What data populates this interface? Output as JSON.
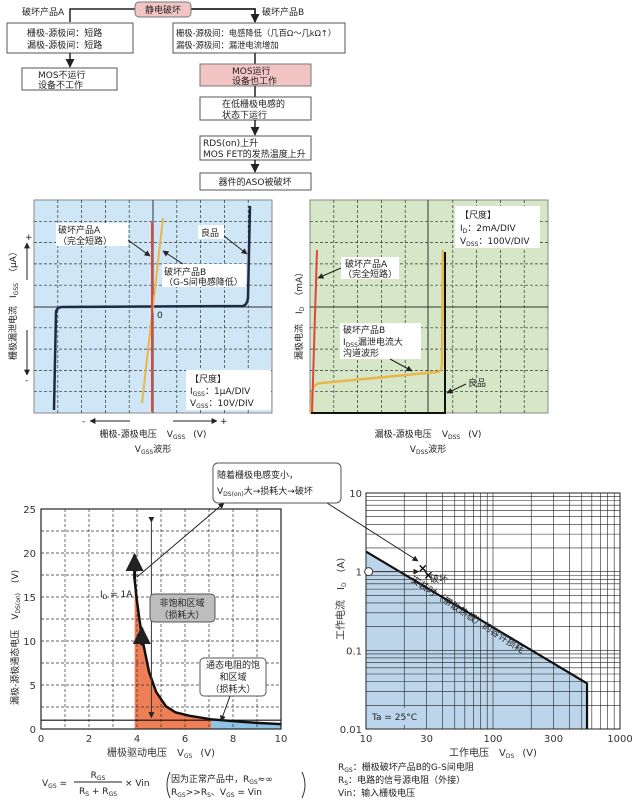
{
  "flow": {
    "root": "静电破坏",
    "branch_a": "破坏产品A",
    "branch_b": "破坏产品B",
    "a_box1": [
      "栅极-源极间：短路",
      "漏极-源极间：短路"
    ],
    "a_box2": [
      "MOS不运行",
      "设备不工作"
    ],
    "b_box1": [
      "栅极-源极间：电感降低（几百Ω～几kΩ↑）",
      "漏极-源极间：漏泄电流增加"
    ],
    "b_box2": [
      "MOS运行",
      "设备也工作"
    ],
    "b_box3": [
      "在低栅极电感的",
      "状态下运行"
    ],
    "b_box4": [
      "RDS(on)上升",
      "MOS FET的发热温度上升"
    ],
    "b_box5": "器件的ASO被破坏"
  },
  "vgss_scope": {
    "bg": "#cfe6f6",
    "label_a": [
      "破坏产品A",
      "（完全短路）"
    ],
    "label_good": "良品",
    "label_b": [
      "破坏产品B",
      "（G-S间电感降低）"
    ],
    "origin": "0",
    "scale_title": "【尺度】",
    "scale_i": {
      "main": "I",
      "sub": "GSS",
      "rest": "：1μA/DIV"
    },
    "scale_v": {
      "main": "V",
      "sub": "GSS",
      "rest": "：10V/DIV"
    },
    "y_label": "栅极漏泄电流",
    "y_sym": {
      "main": "I",
      "sub": "GSS"
    },
    "y_unit": "（μA）",
    "plus": "+",
    "minus": "-",
    "x_label": "栅极-源极电压",
    "x_sym": {
      "main": "V",
      "sub": "GSS"
    },
    "x_unit": "(V)",
    "caption": {
      "main": "V",
      "sub": "GSS",
      "rest": "波形"
    }
  },
  "vdss_scope": {
    "bg": "#d6e7c8",
    "scale_title": "【尺度】",
    "scale_i": {
      "main": "I",
      "sub": "D",
      "rest": "：2mA/DIV"
    },
    "scale_v": {
      "main": "V",
      "sub": "DSS",
      "rest": "：100V/DIV"
    },
    "label_a": [
      "破坏产品A",
      "（完全短路）"
    ],
    "label_b": [
      "破坏产品B",
      "漏泄电流大",
      "沟道波形"
    ],
    "label_b_sym": {
      "main": "I",
      "sub": "DSS"
    },
    "label_good": "良品",
    "y_label": "漏极电流",
    "y_sym": {
      "main": "I",
      "sub": "D"
    },
    "y_unit": "（mA）",
    "x_label": "漏极-源极电压",
    "x_sym": {
      "main": "V",
      "sub": "DSS"
    },
    "x_unit": "(V)",
    "caption": {
      "main": "V",
      "sub": "DSS",
      "rest": "波形"
    }
  },
  "callout": {
    "line1": "随着栅极电感变小，",
    "line2_main": "V",
    "line2_sub": "DS(on)",
    "line2_rest": "大→损耗大→破坏"
  },
  "chart_data": [
    {
      "type": "line",
      "x_ticks": [
        "0",
        "2",
        "4",
        "6",
        "8",
        "10"
      ],
      "y_ticks": [
        "0",
        "5",
        "10",
        "15",
        "20",
        "25"
      ],
      "xlim": [
        0,
        10
      ],
      "ylim": [
        0,
        25
      ],
      "xlabel": "栅极驱动电压",
      "xlabel_sym": {
        "main": "V",
        "sub": "GS"
      },
      "xlabel_unit": "(V)",
      "ylabel": "漏极-源极通态电压",
      "ylabel_sym": {
        "main": "V",
        "sub": "DS(on)"
      },
      "ylabel_unit": "(V)",
      "grid": true,
      "curve": [
        [
          3.9,
          17
        ],
        [
          4.0,
          14.5
        ],
        [
          4.2,
          10.5
        ],
        [
          4.5,
          6.5
        ],
        [
          4.8,
          4.2
        ],
        [
          5.2,
          2.6
        ],
        [
          5.6,
          1.9
        ],
        [
          6.2,
          1.5
        ],
        [
          7.1,
          1.1
        ],
        [
          8,
          0.9
        ],
        [
          9,
          0.7
        ],
        [
          10,
          0.55
        ]
      ],
      "reference_line_y": 1,
      "regions": [
        {
          "from": 3.9,
          "to": 7.1,
          "color": "#ee7e55"
        },
        {
          "from": 7.1,
          "to": 10,
          "color": "#8fc4e6"
        }
      ],
      "annotations": {
        "id_label": {
          "main": "I",
          "sub": "D",
          "rest": " = 1A"
        },
        "unsat": [
          "非饱和区域",
          "（损耗大）"
        ],
        "sat": [
          "通态电阻的饱",
          "和区域",
          "（损耗大）"
        ]
      },
      "formula": {
        "lhs_main": "V",
        "lhs_sub": "GS",
        "num_main": "R",
        "num_sub": "GS",
        "den1_main": "R",
        "den1_sub": "S",
        "den_plus": " + ",
        "den2_main": "R",
        "den2_sub": "GS",
        "times": "× Vin",
        "note1": "因为正常产品中，R",
        "note1_sub": "GS",
        "note1_rest": "≈∞",
        "note2_main": "R",
        "note2_sub": "GS",
        "note2_mid": ">>R",
        "note2_sub2": "S",
        "note2_rest": "、V",
        "note2_sub3": "GS",
        "note2_end": " = Vin"
      }
    },
    {
      "type": "area",
      "x_scale": "log",
      "y_scale": "log",
      "xlim": [
        10,
        1000
      ],
      "ylim": [
        0.01,
        10
      ],
      "x_ticks": [
        "10",
        "30",
        "100",
        "300",
        "1000"
      ],
      "y_ticks": [
        "0.01",
        "0.1",
        "1",
        "10"
      ],
      "xlabel": "工作电压",
      "xlabel_sym": {
        "main": "V",
        "sub": "DS"
      },
      "xlabel_unit": "(V)",
      "ylabel": "工作电流",
      "ylabel_sym": {
        "main": "I",
        "sub": "D"
      },
      "ylabel_unit": "(A)",
      "grid": true,
      "soa_boundary": [
        [
          10,
          1.8
        ],
        [
          550,
          0.038
        ],
        [
          550,
          0.01
        ]
      ],
      "soa_label": "安装时（带散热板）的容许损耗",
      "operating_point": [
        10.5,
        1
      ],
      "failure_points": [
        [
          28,
          1.1
        ],
        [
          31,
          0.9
        ]
      ],
      "failure_label": "破坏",
      "ta_label": "Ta = 25°C",
      "fill": "#bcd5ea"
    }
  ],
  "legend_notes": [
    {
      "main": "R",
      "sub": "GS",
      "rest": "：栅极破坏产品B的G-S间电阻"
    },
    {
      "main": "R",
      "sub": "S",
      "rest": "：电路的信号源电阻（外接）"
    },
    {
      "main": "Vin",
      "sub": "",
      "rest": "：输入栅极电压"
    }
  ]
}
